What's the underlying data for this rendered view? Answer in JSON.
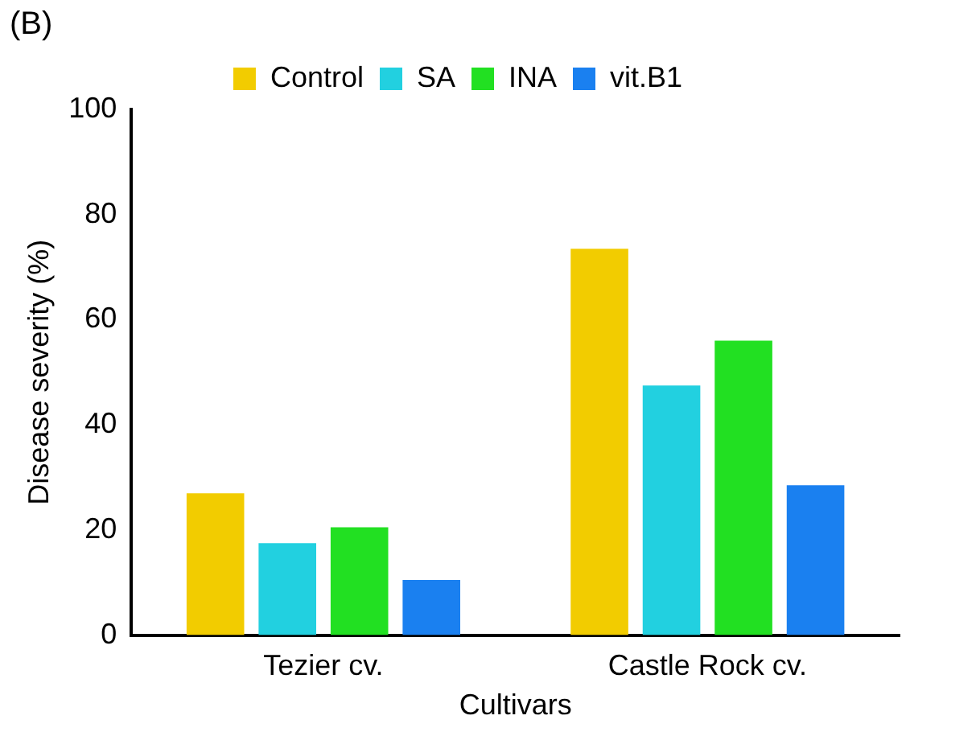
{
  "chart_data": {
    "type": "bar",
    "title": "(B)",
    "xlabel": "Cultivars",
    "ylabel": "Disease severity (%)",
    "categories": [
      "Tezier cv.",
      "Castle Rock cv."
    ],
    "series": [
      {
        "name": "Control",
        "color": "#f2cc00",
        "values": [
          27,
          73.5
        ]
      },
      {
        "name": "SA",
        "color": "#22d0e0",
        "values": [
          17.5,
          47.5
        ]
      },
      {
        "name": "INA",
        "color": "#22e022",
        "values": [
          20.5,
          56
        ]
      },
      {
        "name": "vit.B1",
        "color": "#1a80f0",
        "values": [
          10.5,
          28.5
        ]
      }
    ],
    "ylim": [
      0,
      100
    ],
    "yticks": [
      0,
      20,
      40,
      60,
      80,
      100
    ],
    "grid": false,
    "legend": "top"
  }
}
